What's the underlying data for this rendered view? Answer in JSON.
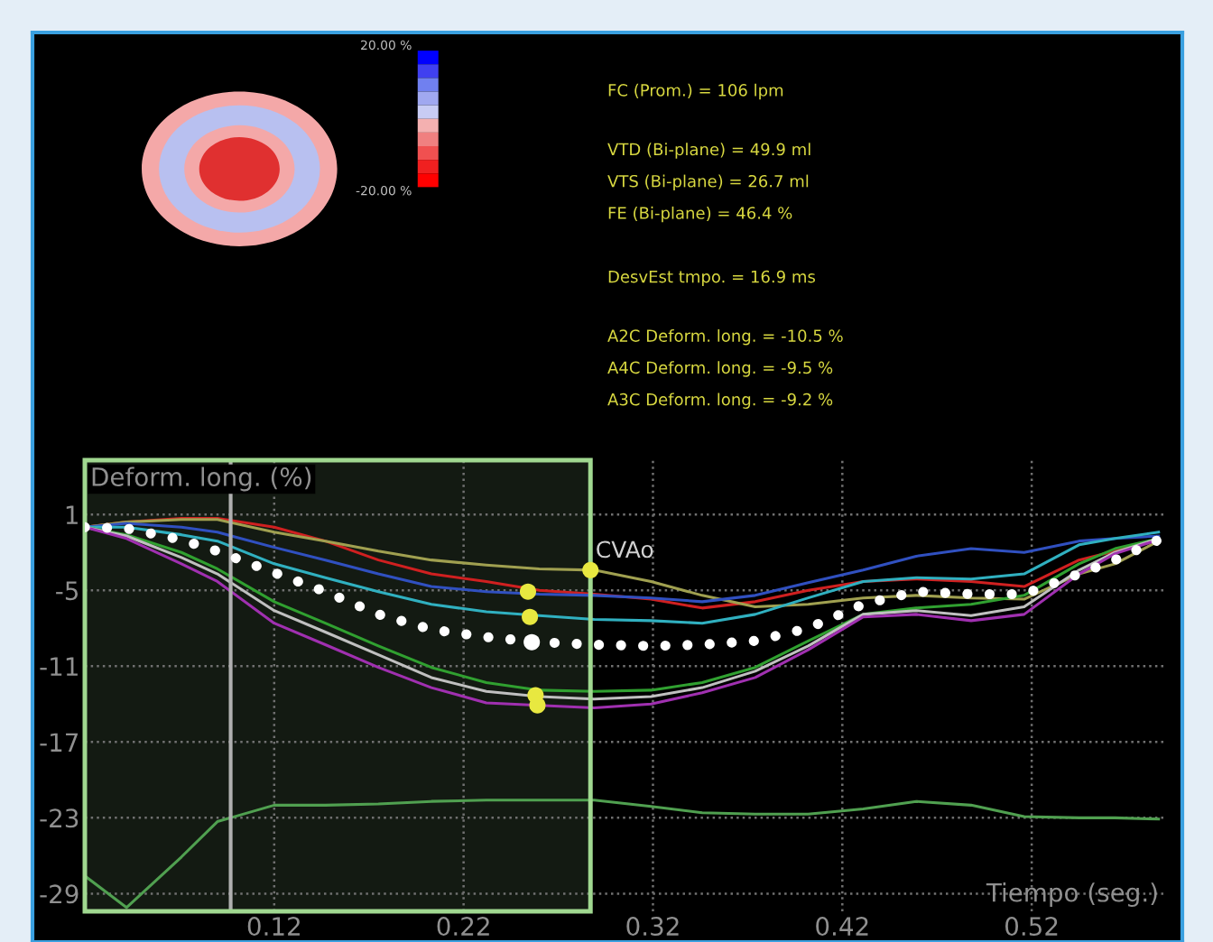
{
  "chart_data": {
    "type": "line",
    "xlabel": "Tiempo (seg.)",
    "ylabel": "Deform. long. (%)",
    "x": [
      0.02,
      0.042,
      0.071,
      0.09,
      0.12,
      0.147,
      0.175,
      0.203,
      0.232,
      0.26,
      0.289,
      0.319,
      0.346,
      0.374,
      0.402,
      0.431,
      0.459,
      0.488,
      0.516,
      0.545,
      0.564,
      0.587
    ],
    "xlim": [
      0.02,
      0.59
    ],
    "ylim": [
      -30.4,
      5.3
    ],
    "xticks": [
      0.12,
      0.22,
      0.32,
      0.42,
      0.52
    ],
    "yticks": [
      1,
      -5,
      -11,
      -17,
      -23,
      -29
    ],
    "grid": true,
    "line_style": "solid",
    "series": [
      {
        "color": "#d02020",
        "values": [
          0,
          0.4,
          0.7,
          0.7,
          0,
          -1.1,
          -2.6,
          -3.7,
          -4.3,
          -5.0,
          -5.3,
          -5.7,
          -6.4,
          -5.9,
          -5.0,
          -4.3,
          -4.1,
          -4.3,
          -4.7,
          -2.6,
          -1.9,
          -0.9
        ]
      },
      {
        "color": "#a0a050",
        "values": [
          0,
          0.4,
          0.6,
          0.6,
          -0.4,
          -1.1,
          -1.9,
          -2.6,
          -3.0,
          -3.3,
          -3.4,
          -4.3,
          -5.4,
          -6.3,
          -6.1,
          -5.6,
          -5.4,
          -5.6,
          -5.7,
          -3.7,
          -2.9,
          -1.1
        ]
      },
      {
        "color": "#3050c0",
        "values": [
          0,
          0.3,
          0,
          -0.4,
          -1.6,
          -2.6,
          -3.7,
          -4.7,
          -5.1,
          -5.3,
          -5.4,
          -5.6,
          -5.9,
          -5.4,
          -4.4,
          -3.4,
          -2.3,
          -1.7,
          -2.0,
          -1.1,
          -0.9,
          -0.7
        ]
      },
      {
        "color": "#30b0c0",
        "values": [
          0,
          0,
          -0.6,
          -1.1,
          -2.9,
          -4.0,
          -5.1,
          -6.1,
          -6.7,
          -7.0,
          -7.3,
          -7.4,
          -7.6,
          -6.9,
          -5.6,
          -4.3,
          -4.0,
          -4.1,
          -3.7,
          -1.4,
          -0.9,
          -0.4
        ]
      },
      {
        "color": "#30a030",
        "values": [
          0,
          -0.6,
          -2.0,
          -3.3,
          -5.9,
          -7.6,
          -9.4,
          -11.1,
          -12.3,
          -12.9,
          -13.0,
          -12.9,
          -12.3,
          -11.1,
          -9.0,
          -6.9,
          -6.4,
          -6.1,
          -5.4,
          -2.9,
          -1.7,
          -0.9
        ]
      },
      {
        "color": "#c0c0c0",
        "values": [
          0,
          -0.7,
          -2.4,
          -3.7,
          -6.6,
          -8.3,
          -10.1,
          -11.9,
          -13.0,
          -13.4,
          -13.6,
          -13.4,
          -12.7,
          -11.4,
          -9.4,
          -6.9,
          -6.6,
          -7.0,
          -6.3,
          -3.4,
          -2.0,
          -0.9
        ]
      },
      {
        "color": "#a030b0",
        "values": [
          0,
          -0.9,
          -2.9,
          -4.3,
          -7.6,
          -9.3,
          -11.1,
          -12.7,
          -13.9,
          -14.1,
          -14.3,
          -14.0,
          -13.1,
          -11.9,
          -9.7,
          -7.1,
          -6.9,
          -7.4,
          -6.9,
          -3.7,
          -2.1,
          -1.0
        ]
      },
      {
        "color": "#ffffff",
        "line_style": "dotted",
        "values": [
          0,
          -0.1,
          -1.0,
          -1.9,
          -3.6,
          -5.1,
          -6.9,
          -8.1,
          -8.7,
          -9.1,
          -9.3,
          -9.4,
          -9.3,
          -9.0,
          -8.0,
          -6.1,
          -5.1,
          -5.3,
          -5.3,
          -3.7,
          -2.6,
          -1.0
        ]
      },
      {
        "color": "#50a050",
        "values": [
          -27.6,
          -30.1,
          -26.1,
          -23.3,
          -22.0,
          -22.0,
          -21.9,
          -21.7,
          -21.6,
          -21.6,
          -21.6,
          -22.1,
          -22.6,
          -22.7,
          -22.7,
          -22.3,
          -21.7,
          -22.0,
          -22.9,
          -23.0,
          -23.0,
          -23.1
        ]
      },
      {
        "type": "scatter",
        "color": "#e8e840",
        "x": [
          0.254,
          0.255,
          0.258,
          0.259,
          0.287
        ],
        "values": [
          -5.1,
          -7.1,
          -13.3,
          -14.1,
          -3.4
        ]
      },
      {
        "type": "scatter",
        "color": "#ffffff",
        "x": [
          0.256
        ],
        "values": [
          -9.1
        ]
      }
    ],
    "ref_lines": [
      {
        "axis": "x",
        "value": 0.097,
        "color": "#b0b0b0"
      }
    ],
    "bands": [
      {
        "axis": "x",
        "from": 0.02,
        "to": 0.287,
        "color": "#a0d890"
      }
    ],
    "annotations": [
      {
        "text": "CVAo",
        "x": 0.287,
        "y": -3.4
      },
      "20.00 %",
      "-20.00 %",
      "FC (Prom.) = 106 lpm",
      "VTD (Bi-plane) = 49.9 ml",
      "VTS (Bi-plane) = 26.7 ml",
      "FE (Bi-plane) = 46.4 %",
      "DesvEst tmpo. = 16.9 ms",
      "A2C Deform. long. = -10.5 %",
      "A4C Deform. long. = -9.5 %",
      "A3C Deform. long. = -9.2 %"
    ]
  }
}
